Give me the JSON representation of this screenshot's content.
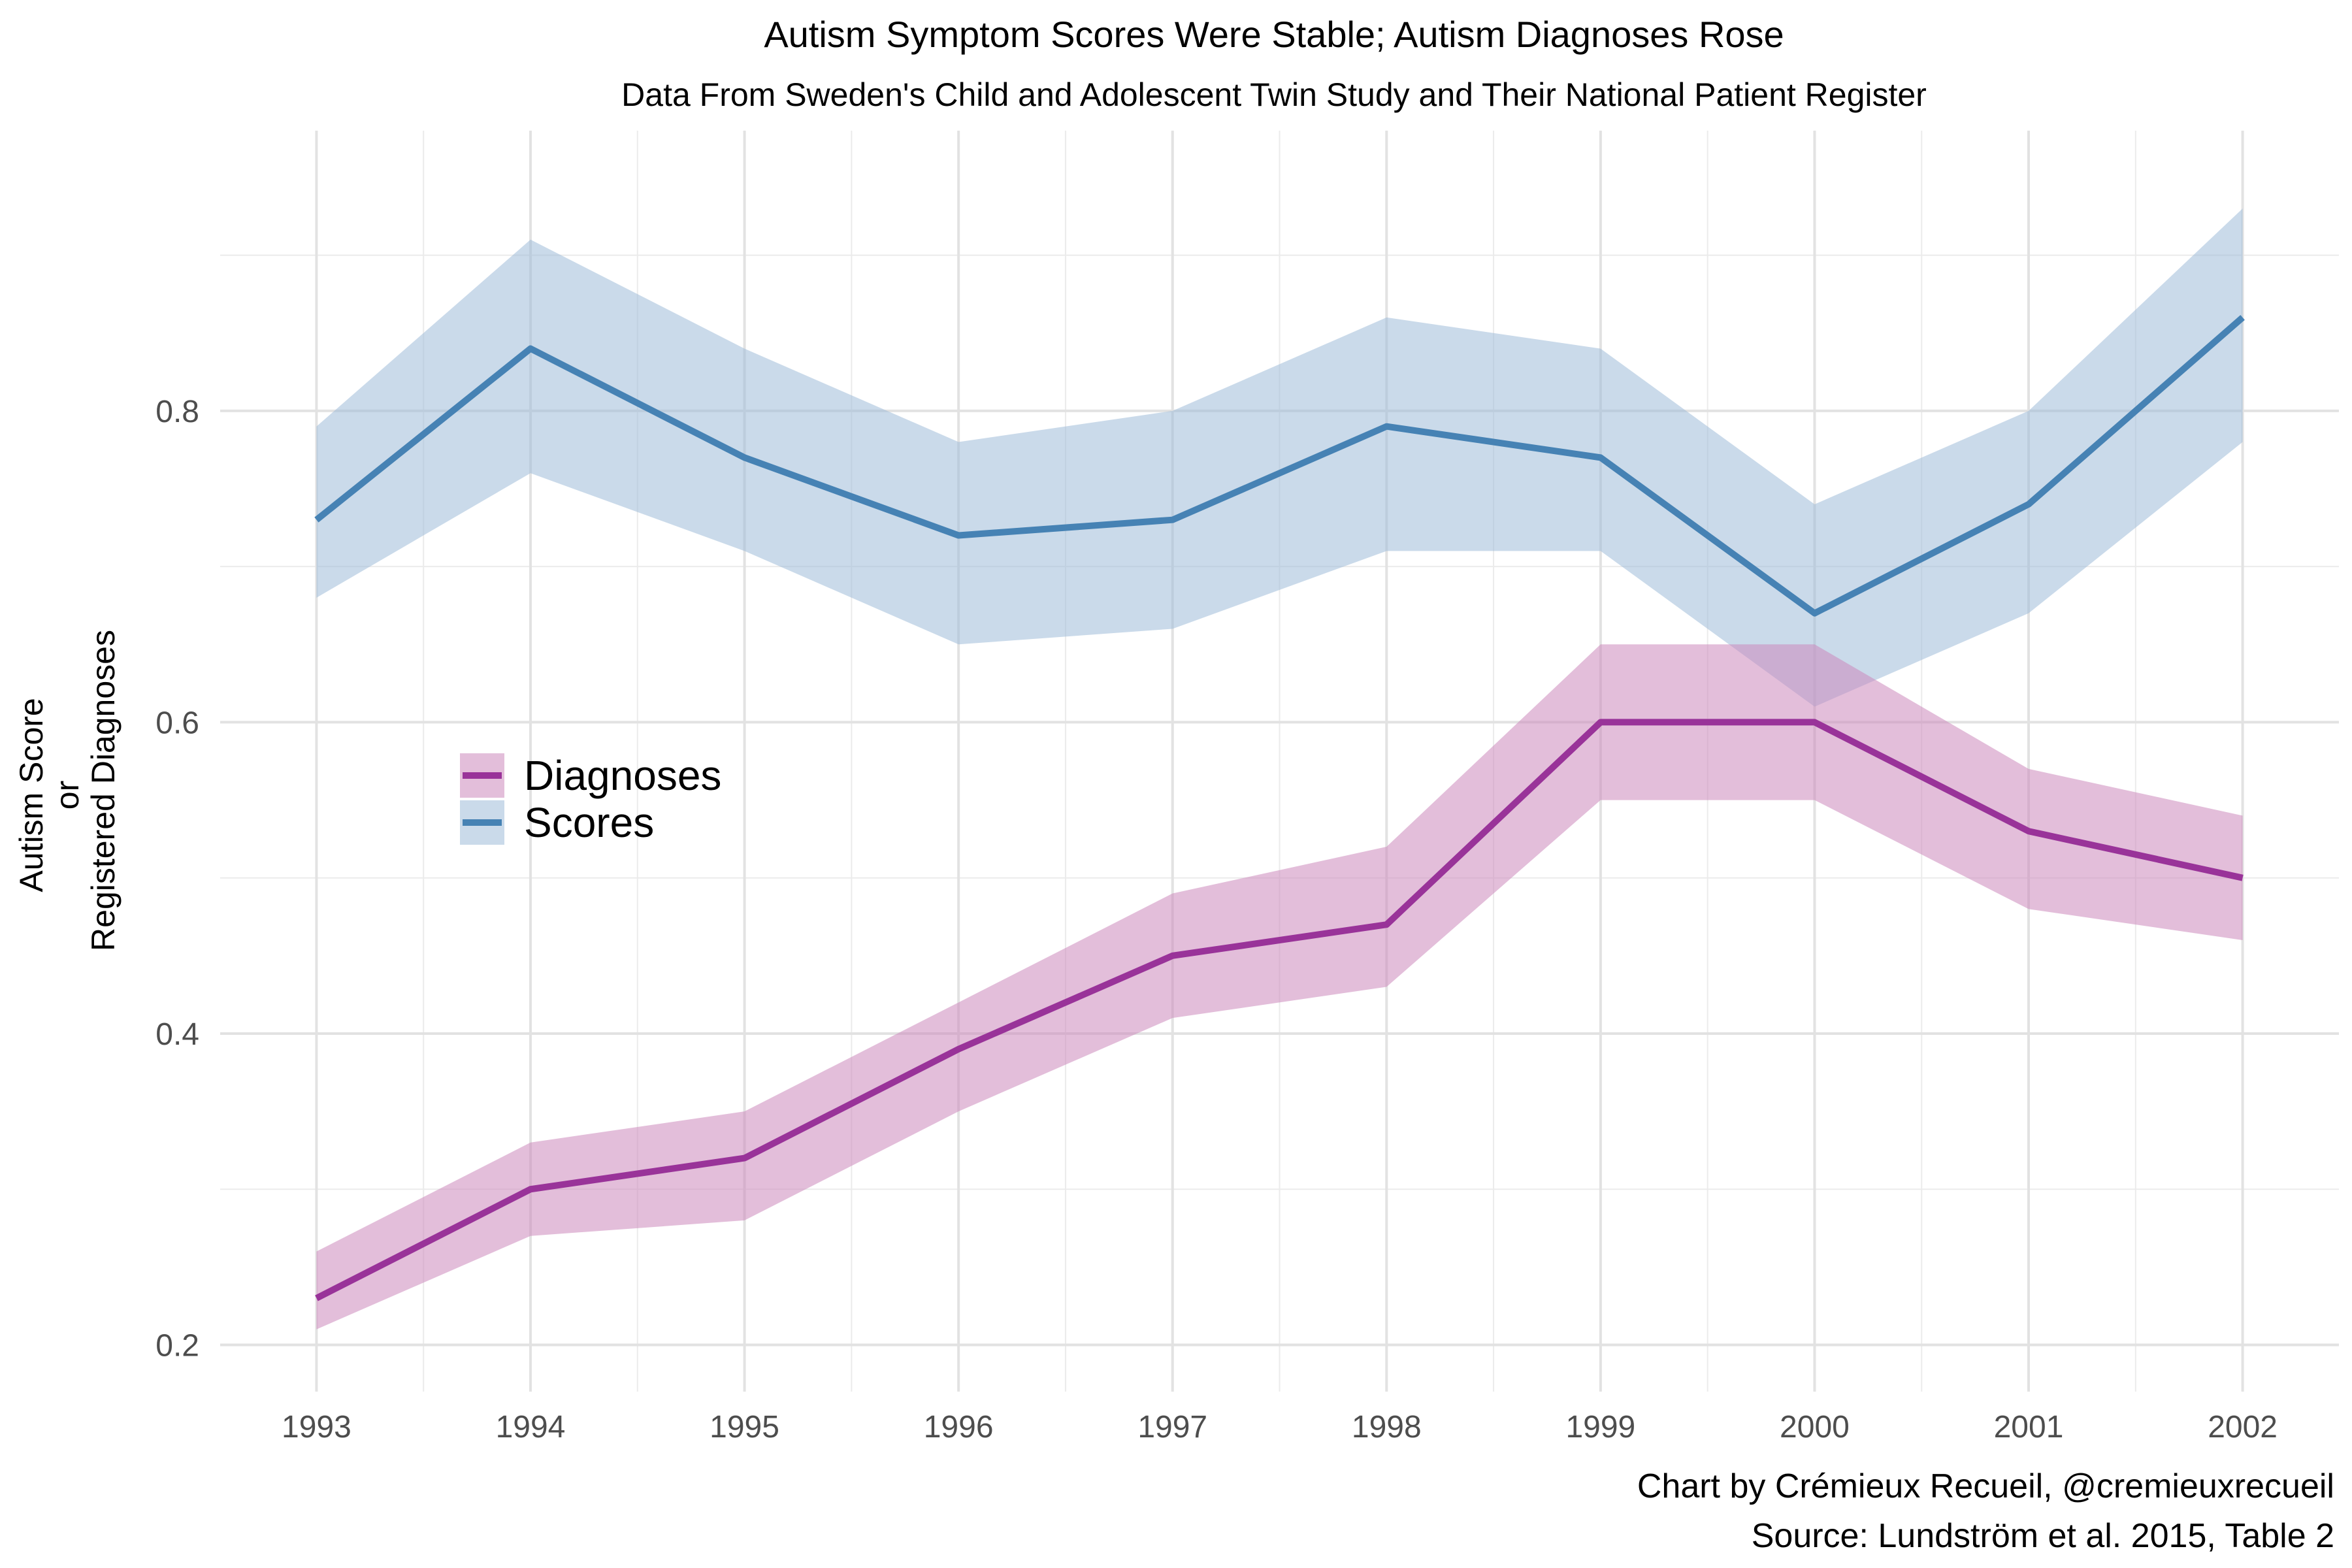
{
  "chart_data": {
    "type": "line",
    "title": "Autism Symptom Scores Were Stable; Autism Diagnoses Rose",
    "subtitle": "Data From Sweden's Child and Adolescent Twin Study and Their National Patient Register",
    "ylabel": [
      "Autism Score",
      "or",
      "Registered Diagnoses"
    ],
    "xlabel": "",
    "x": [
      1993,
      1994,
      1995,
      1996,
      1997,
      1998,
      1999,
      2000,
      2001,
      2002
    ],
    "xlim": [
      1992.55,
      2002.45
    ],
    "ylim": [
      0.17,
      0.98
    ],
    "yticks": [
      0.2,
      0.4,
      0.6,
      0.8
    ],
    "ytick_labels": [
      "0.2",
      "0.4",
      "0.6",
      "0.8"
    ],
    "grid": true,
    "legend_position": "left-center",
    "series": [
      {
        "name": "Diagnoses",
        "color": "#993399",
        "band_color": "#cc88bb",
        "values": [
          0.23,
          0.3,
          0.32,
          0.39,
          0.45,
          0.47,
          0.6,
          0.6,
          0.53,
          0.5
        ],
        "lower": [
          0.21,
          0.27,
          0.28,
          0.35,
          0.41,
          0.43,
          0.55,
          0.55,
          0.48,
          0.46
        ],
        "upper": [
          0.26,
          0.33,
          0.35,
          0.42,
          0.49,
          0.52,
          0.65,
          0.65,
          0.57,
          0.54
        ]
      },
      {
        "name": "Scores",
        "color": "#4682b4",
        "band_color": "#9ebcd8",
        "values": [
          0.73,
          0.84,
          0.77,
          0.72,
          0.73,
          0.79,
          0.77,
          0.67,
          0.74,
          0.86
        ],
        "lower": [
          0.68,
          0.76,
          0.71,
          0.65,
          0.66,
          0.71,
          0.71,
          0.61,
          0.67,
          0.78
        ],
        "upper": [
          0.79,
          0.91,
          0.84,
          0.78,
          0.8,
          0.86,
          0.84,
          0.74,
          0.8,
          0.93
        ]
      }
    ],
    "caption": [
      "Chart by Crémieux Recueil, @cremieuxrecueil",
      "Source: Lundström et al. 2015, Table 2"
    ]
  }
}
